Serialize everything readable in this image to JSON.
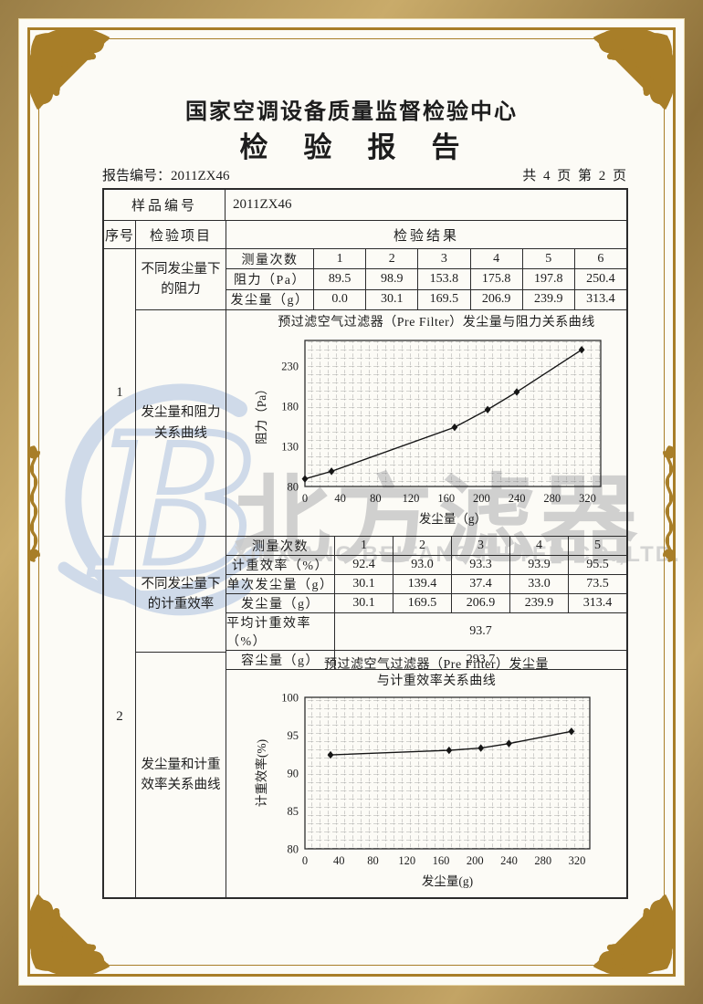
{
  "header": {
    "center_name": "国家空调设备质量监督检验中心",
    "report_title": "检　验　报　告",
    "report_no": "报告编号：2011ZX46",
    "page_info": "共 4 页 第 2 页"
  },
  "main_table": {
    "sample_label": "样品编号",
    "sample_value": "2011ZX46",
    "col_serial": "序号",
    "col_item": "检验项目",
    "col_result": "检验结果"
  },
  "sections": [
    {
      "serial": "1",
      "item_top": "不同发尘量下的阻力",
      "item_bottom": "发尘量和阻力关系曲线",
      "subtable": {
        "label_col_width": 95,
        "rows": [
          {
            "label": "测量次数",
            "values": [
              "1",
              "2",
              "3",
              "4",
              "5",
              "6"
            ]
          },
          {
            "label": "阻力（Pa）",
            "values": [
              "89.5",
              "98.9",
              "153.8",
              "175.8",
              "197.8",
              "250.4"
            ]
          },
          {
            "label": "发尘量（g）",
            "values": [
              "0.0",
              "30.1",
              "169.5",
              "206.9",
              "239.9",
              "313.4"
            ]
          }
        ]
      }
    },
    {
      "serial": "2",
      "item_top": "不同发尘量下的计重效率",
      "item_bottom": "发尘量和计重效率关系曲线",
      "subtable": {
        "label_col_width": 118,
        "rows": [
          {
            "label": "测量次数",
            "values": [
              "1",
              "2",
              "3",
              "4",
              "5"
            ]
          },
          {
            "label": "计重效率（%）",
            "values": [
              "92.4",
              "93.0",
              "93.3",
              "93.9",
              "95.5"
            ]
          },
          {
            "label": "单次发尘量（g）",
            "values": [
              "30.1",
              "139.4",
              "37.4",
              "33.0",
              "73.5"
            ]
          },
          {
            "label": "发尘量（g）",
            "values": [
              "30.1",
              "169.5",
              "206.9",
              "239.9",
              "313.4"
            ]
          },
          {
            "label": "平均计重效率（%）",
            "span_value": "93.7"
          },
          {
            "label": "容尘量（g）",
            "span_value": "293.7"
          }
        ]
      }
    }
  ],
  "chart_data": [
    {
      "type": "line",
      "title_lines": [
        "预过滤空气过滤器（Pre Filter）发尘量与阻力关系曲线"
      ],
      "xlabel": "发尘量（g）",
      "ylabel": "阻力（Pa）",
      "x": [
        0,
        30.1,
        169.5,
        206.9,
        239.9,
        313.4
      ],
      "y": [
        89.5,
        98.9,
        153.8,
        175.8,
        197.8,
        250.4
      ],
      "xlim": [
        0,
        335
      ],
      "ylim": [
        80,
        262
      ],
      "x_ticks": [
        0,
        40,
        80,
        120,
        160,
        200,
        240,
        280,
        320
      ],
      "y_ticks": [
        80,
        130,
        180,
        230
      ],
      "marker": "diamond",
      "grid": "graph-paper",
      "legend": "none"
    },
    {
      "type": "line",
      "title_lines": [
        "预过滤空气过滤器（Pre Filter）发尘量",
        "与计重效率关系曲线"
      ],
      "xlabel": "发尘量(g)",
      "ylabel": "计重效率(%)",
      "x": [
        30.1,
        169.5,
        206.9,
        239.9,
        313.4
      ],
      "y": [
        92.4,
        93.0,
        93.3,
        93.9,
        95.5
      ],
      "xlim": [
        0,
        335
      ],
      "ylim": [
        80,
        100
      ],
      "x_ticks": [
        0,
        40,
        80,
        120,
        160,
        200,
        240,
        280,
        320
      ],
      "y_ticks": [
        80,
        85,
        90,
        95,
        100
      ],
      "marker": "diamond",
      "grid": "graph-paper",
      "legend": "none"
    }
  ],
  "watermark": {
    "logo_letter": "B",
    "cn_text": "北方滤器",
    "en_text": "XINXIANG BEIFANG FILTER CO.,LTD."
  },
  "theme": {
    "gold": "#a87e28",
    "ink": "#1d1d1d",
    "paper": "#fcfbf6",
    "watermark_blue": "#c4d3e7",
    "watermark_gray": "#c9c9c9"
  }
}
